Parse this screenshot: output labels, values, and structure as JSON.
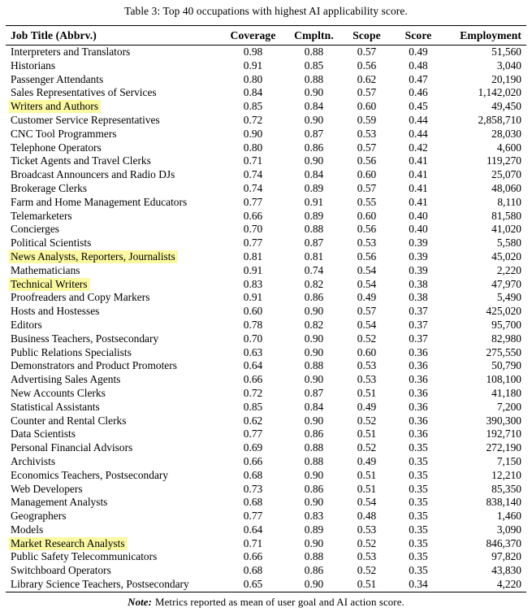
{
  "page": {
    "caption": "Table 3: Top 40 occupations with highest AI applicability score.",
    "note": {
      "label": "Note:",
      "text": "Metrics reported as mean of user goal and AI action score."
    }
  },
  "table": {
    "columns": [
      "Job Title (Abbrv.)",
      "Coverage",
      "Cmpltn.",
      "Scope",
      "Score",
      "Employment"
    ],
    "highlight_color": "#fbf9a1",
    "highlighted_rows": [
      "Writers and Authors",
      "News Analysts, Reporters, Journalists",
      "Technical Writers",
      "Market Research Analysts"
    ],
    "rows": [
      {
        "job_title": "Interpreters and Translators",
        "coverage": "0.98",
        "cmpltn": "0.88",
        "scope": "0.57",
        "score": "0.49",
        "employment": "51,560",
        "highlighted": false
      },
      {
        "job_title": "Historians",
        "coverage": "0.91",
        "cmpltn": "0.85",
        "scope": "0.56",
        "score": "0.48",
        "employment": "3,040",
        "highlighted": false
      },
      {
        "job_title": "Passenger Attendants",
        "coverage": "0.80",
        "cmpltn": "0.88",
        "scope": "0.62",
        "score": "0.47",
        "employment": "20,190",
        "highlighted": false
      },
      {
        "job_title": "Sales Representatives of Services",
        "coverage": "0.84",
        "cmpltn": "0.90",
        "scope": "0.57",
        "score": "0.46",
        "employment": "1,142,020",
        "highlighted": false
      },
      {
        "job_title": "Writers and Authors",
        "coverage": "0.85",
        "cmpltn": "0.84",
        "scope": "0.60",
        "score": "0.45",
        "employment": "49,450",
        "highlighted": true
      },
      {
        "job_title": "Customer Service Representatives",
        "coverage": "0.72",
        "cmpltn": "0.90",
        "scope": "0.59",
        "score": "0.44",
        "employment": "2,858,710",
        "highlighted": false
      },
      {
        "job_title": "CNC Tool Programmers",
        "coverage": "0.90",
        "cmpltn": "0.87",
        "scope": "0.53",
        "score": "0.44",
        "employment": "28,030",
        "highlighted": false
      },
      {
        "job_title": "Telephone Operators",
        "coverage": "0.80",
        "cmpltn": "0.86",
        "scope": "0.57",
        "score": "0.42",
        "employment": "4,600",
        "highlighted": false
      },
      {
        "job_title": "Ticket Agents and Travel Clerks",
        "coverage": "0.71",
        "cmpltn": "0.90",
        "scope": "0.56",
        "score": "0.41",
        "employment": "119,270",
        "highlighted": false
      },
      {
        "job_title": "Broadcast Announcers and Radio DJs",
        "coverage": "0.74",
        "cmpltn": "0.84",
        "scope": "0.60",
        "score": "0.41",
        "employment": "25,070",
        "highlighted": false
      },
      {
        "job_title": "Brokerage Clerks",
        "coverage": "0.74",
        "cmpltn": "0.89",
        "scope": "0.57",
        "score": "0.41",
        "employment": "48,060",
        "highlighted": false
      },
      {
        "job_title": "Farm and Home Management Educators",
        "coverage": "0.77",
        "cmpltn": "0.91",
        "scope": "0.55",
        "score": "0.41",
        "employment": "8,110",
        "highlighted": false
      },
      {
        "job_title": "Telemarketers",
        "coverage": "0.66",
        "cmpltn": "0.89",
        "scope": "0.60",
        "score": "0.40",
        "employment": "81,580",
        "highlighted": false
      },
      {
        "job_title": "Concierges",
        "coverage": "0.70",
        "cmpltn": "0.88",
        "scope": "0.56",
        "score": "0.40",
        "employment": "41,020",
        "highlighted": false
      },
      {
        "job_title": "Political Scientists",
        "coverage": "0.77",
        "cmpltn": "0.87",
        "scope": "0.53",
        "score": "0.39",
        "employment": "5,580",
        "highlighted": false
      },
      {
        "job_title": "News Analysts, Reporters, Journalists",
        "coverage": "0.81",
        "cmpltn": "0.81",
        "scope": "0.56",
        "score": "0.39",
        "employment": "45,020",
        "highlighted": true
      },
      {
        "job_title": "Mathematicians",
        "coverage": "0.91",
        "cmpltn": "0.74",
        "scope": "0.54",
        "score": "0.39",
        "employment": "2,220",
        "highlighted": false
      },
      {
        "job_title": "Technical Writers",
        "coverage": "0.83",
        "cmpltn": "0.82",
        "scope": "0.54",
        "score": "0.38",
        "employment": "47,970",
        "highlighted": true
      },
      {
        "job_title": "Proofreaders and Copy Markers",
        "coverage": "0.91",
        "cmpltn": "0.86",
        "scope": "0.49",
        "score": "0.38",
        "employment": "5,490",
        "highlighted": false
      },
      {
        "job_title": "Hosts and Hostesses",
        "coverage": "0.60",
        "cmpltn": "0.90",
        "scope": "0.57",
        "score": "0.37",
        "employment": "425,020",
        "highlighted": false
      },
      {
        "job_title": "Editors",
        "coverage": "0.78",
        "cmpltn": "0.82",
        "scope": "0.54",
        "score": "0.37",
        "employment": "95,700",
        "highlighted": false
      },
      {
        "job_title": "Business Teachers, Postsecondary",
        "coverage": "0.70",
        "cmpltn": "0.90",
        "scope": "0.52",
        "score": "0.37",
        "employment": "82,980",
        "highlighted": false
      },
      {
        "job_title": "Public Relations Specialists",
        "coverage": "0.63",
        "cmpltn": "0.90",
        "scope": "0.60",
        "score": "0.36",
        "employment": "275,550",
        "highlighted": false
      },
      {
        "job_title": "Demonstrators and Product Promoters",
        "coverage": "0.64",
        "cmpltn": "0.88",
        "scope": "0.53",
        "score": "0.36",
        "employment": "50,790",
        "highlighted": false
      },
      {
        "job_title": "Advertising Sales Agents",
        "coverage": "0.66",
        "cmpltn": "0.90",
        "scope": "0.53",
        "score": "0.36",
        "employment": "108,100",
        "highlighted": false
      },
      {
        "job_title": "New Accounts Clerks",
        "coverage": "0.72",
        "cmpltn": "0.87",
        "scope": "0.51",
        "score": "0.36",
        "employment": "41,180",
        "highlighted": false
      },
      {
        "job_title": "Statistical Assistants",
        "coverage": "0.85",
        "cmpltn": "0.84",
        "scope": "0.49",
        "score": "0.36",
        "employment": "7,200",
        "highlighted": false
      },
      {
        "job_title": "Counter and Rental Clerks",
        "coverage": "0.62",
        "cmpltn": "0.90",
        "scope": "0.52",
        "score": "0.36",
        "employment": "390,300",
        "highlighted": false
      },
      {
        "job_title": "Data Scientists",
        "coverage": "0.77",
        "cmpltn": "0.86",
        "scope": "0.51",
        "score": "0.36",
        "employment": "192,710",
        "highlighted": false
      },
      {
        "job_title": "Personal Financial Advisors",
        "coverage": "0.69",
        "cmpltn": "0.88",
        "scope": "0.52",
        "score": "0.35",
        "employment": "272,190",
        "highlighted": false
      },
      {
        "job_title": "Archivists",
        "coverage": "0.66",
        "cmpltn": "0.88",
        "scope": "0.49",
        "score": "0.35",
        "employment": "7,150",
        "highlighted": false
      },
      {
        "job_title": "Economics Teachers, Postsecondary",
        "coverage": "0.68",
        "cmpltn": "0.90",
        "scope": "0.51",
        "score": "0.35",
        "employment": "12,210",
        "highlighted": false
      },
      {
        "job_title": "Web Developers",
        "coverage": "0.73",
        "cmpltn": "0.86",
        "scope": "0.51",
        "score": "0.35",
        "employment": "85,350",
        "highlighted": false
      },
      {
        "job_title": "Management Analysts",
        "coverage": "0.68",
        "cmpltn": "0.90",
        "scope": "0.54",
        "score": "0.35",
        "employment": "838,140",
        "highlighted": false
      },
      {
        "job_title": "Geographers",
        "coverage": "0.77",
        "cmpltn": "0.83",
        "scope": "0.48",
        "score": "0.35",
        "employment": "1,460",
        "highlighted": false
      },
      {
        "job_title": "Models",
        "coverage": "0.64",
        "cmpltn": "0.89",
        "scope": "0.53",
        "score": "0.35",
        "employment": "3,090",
        "highlighted": false
      },
      {
        "job_title": "Market Research Analysts",
        "coverage": "0.71",
        "cmpltn": "0.90",
        "scope": "0.52",
        "score": "0.35",
        "employment": "846,370",
        "highlighted": true
      },
      {
        "job_title": "Public Safety Telecommunicators",
        "coverage": "0.66",
        "cmpltn": "0.88",
        "scope": "0.53",
        "score": "0.35",
        "employment": "97,820",
        "highlighted": false
      },
      {
        "job_title": "Switchboard Operators",
        "coverage": "0.68",
        "cmpltn": "0.86",
        "scope": "0.52",
        "score": "0.35",
        "employment": "43,830",
        "highlighted": false
      },
      {
        "job_title": "Library Science Teachers, Postsecondary",
        "coverage": "0.65",
        "cmpltn": "0.90",
        "scope": "0.51",
        "score": "0.34",
        "employment": "4,220",
        "highlighted": false
      }
    ]
  }
}
